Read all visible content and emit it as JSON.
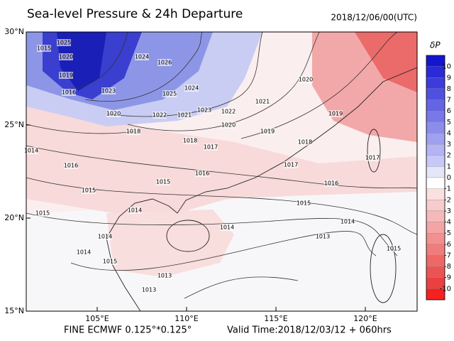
{
  "header": {
    "title": "Sea-level Pressure & 24h Departure",
    "time": "2018/12/06/00(UTC)"
  },
  "map": {
    "lat_labels": [
      "30°N",
      "25°N",
      "20°N",
      "15°N"
    ],
    "lon_labels": [
      "105°E",
      "110°E",
      "115°E",
      "120°E"
    ],
    "contour_labels": [
      "1025",
      "1020",
      "1019",
      "1016",
      "1015",
      "1023",
      "1020",
      "1018",
      "1018",
      "1024",
      "1026",
      "1025",
      "1024",
      "1022",
      "1021",
      "1023",
      "1022",
      "1020",
      "1021",
      "1019",
      "1018",
      "1020",
      "1019",
      "1017",
      "1016",
      "1015",
      "1014",
      "1013",
      "1015",
      "1015",
      "1016",
      "1016",
      "1014",
      "1015",
      "1014",
      "1015",
      "1014",
      "1014",
      "1014",
      "1015",
      "1013",
      "1013",
      "1017",
      "1017"
    ]
  },
  "colorbar": {
    "title": "δP",
    "labels": [
      10,
      9,
      8,
      7,
      6,
      5,
      4,
      3,
      2,
      1,
      0,
      -1,
      -2,
      -3,
      -4,
      -5,
      -6,
      -7,
      -8,
      -9,
      -10
    ],
    "colors": [
      "#1515d0",
      "#2a2ad8",
      "#3c3cdc",
      "#5050e0",
      "#6464e4",
      "#7878e8",
      "#8c8cec",
      "#a0a0f0",
      "#b4b4f4",
      "#c8c8f8",
      "#e6e6fa",
      "#ffffff",
      "#fbe0e0",
      "#f8cccc",
      "#f6b8b8",
      "#f4a4a4",
      "#f29090",
      "#f07c7c",
      "#ee6868",
      "#ec5454",
      "#ea4040",
      "#f52020"
    ]
  },
  "footer": {
    "left": "FINE ECMWF 0.125°*0.125°",
    "right": "Valid Time:2018/12/03/12 + 060hrs"
  }
}
